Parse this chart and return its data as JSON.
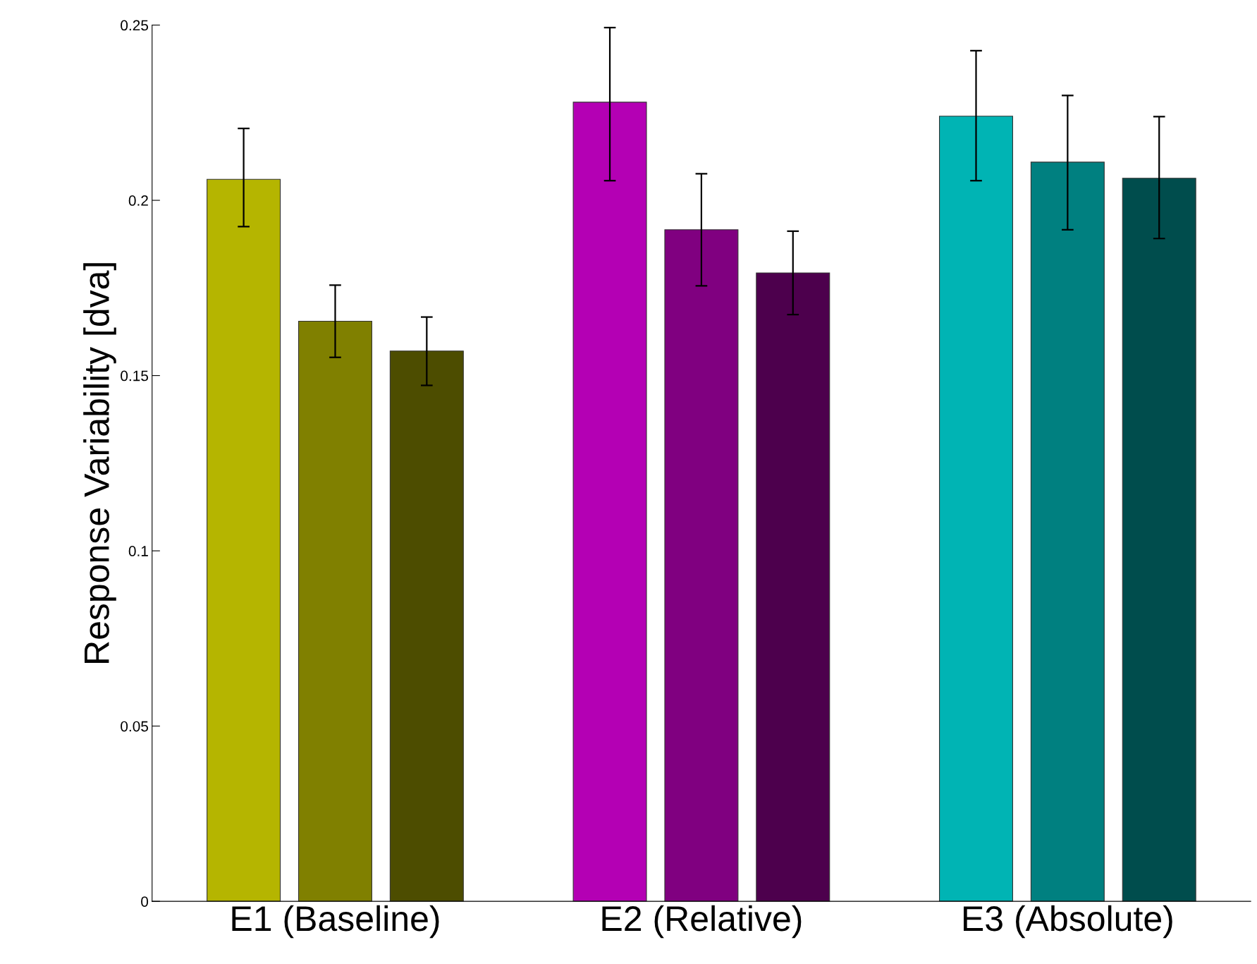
{
  "chart_data": {
    "type": "bar",
    "ylabel": "Response Variability [dva]",
    "categories": [
      "E1 (Baseline)",
      "E2 (Relative)",
      "E3 (Absolute)"
    ],
    "series": [
      {
        "colors": [
          "#b5b500",
          "#b400b4",
          "#00b4b4"
        ],
        "values": [
          0.206,
          0.228,
          0.224
        ],
        "errors": [
          [
            0.1925,
            0.2205
          ],
          [
            0.2056,
            0.2493
          ],
          [
            0.2056,
            0.2427
          ]
        ]
      },
      {
        "colors": [
          "#808000",
          "#800080",
          "#008080"
        ],
        "values": [
          0.1655,
          0.1916,
          0.2109
        ],
        "errors": [
          [
            0.1552,
            0.1758
          ],
          [
            0.1756,
            0.2076
          ],
          [
            0.1916,
            0.2299
          ]
        ]
      },
      {
        "colors": [
          "#4d4d00",
          "#4d004d",
          "#004d4d"
        ],
        "values": [
          0.157,
          0.1793,
          0.2063
        ],
        "errors": [
          [
            0.1472,
            0.1667
          ],
          [
            0.1674,
            0.1912
          ],
          [
            0.1891,
            0.2239
          ]
        ]
      }
    ],
    "ylim": [
      0,
      0.25
    ],
    "yticks": [
      0,
      {
        "value": 0.05,
        "label": "0.05"
      },
      {
        "value": 0.1,
        "label": "0.1"
      },
      {
        "value": 0.15,
        "label": "0.15"
      },
      {
        "value": 0.2,
        "label": "0.2"
      },
      {
        "value": 0.25,
        "label": "0.25"
      }
    ],
    "grid": false,
    "legend": false
  }
}
